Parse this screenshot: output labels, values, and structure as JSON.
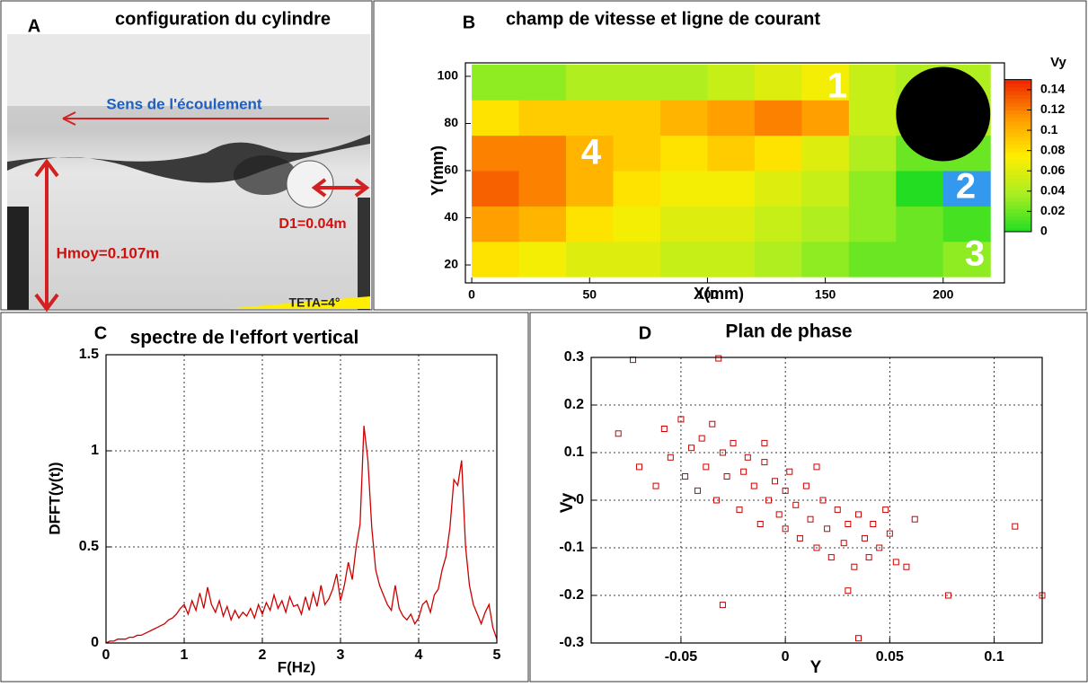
{
  "chart_data": [
    {
      "type": "image",
      "label": "A",
      "title": "configuration du cylindre",
      "annotations": [
        "Sens de l'écoulement",
        "D1=0.04m",
        "Hmoy=0.107m",
        "TETA=4°"
      ]
    },
    {
      "type": "heatmap",
      "label": "B",
      "title": "champ de vitesse et ligne de courant",
      "xlabel": "X(mm)",
      "ylabel": "Y(mm)",
      "xlim": [
        -2.7,
        226
      ],
      "ylim": [
        12.4,
        105.7
      ],
      "xticks": [
        0,
        50,
        100,
        150,
        200
      ],
      "yticks": [
        20,
        40,
        60,
        80,
        100
      ],
      "x_edges": [
        0,
        20,
        40,
        60,
        80,
        100,
        120,
        140,
        160,
        180,
        200,
        220
      ],
      "y_edges": [
        15,
        30,
        45,
        60,
        75,
        90,
        105
      ],
      "values": [
        [
          0.08,
          0.07,
          0.06,
          0.06,
          0.05,
          0.05,
          0.04,
          0.03,
          0.02,
          0.02,
          0.03
        ],
        [
          0.11,
          0.1,
          0.08,
          0.07,
          0.06,
          0.06,
          0.05,
          0.04,
          0.03,
          0.02,
          0.01
        ],
        [
          0.13,
          0.12,
          0.1,
          0.08,
          0.07,
          0.07,
          0.06,
          0.05,
          0.03,
          0,
          -0.01
        ],
        [
          0.12,
          0.12,
          0.1,
          0.09,
          0.08,
          0.09,
          0.08,
          0.06,
          0.04,
          0.02,
          0.02
        ],
        [
          0.08,
          0.09,
          0.09,
          0.09,
          0.1,
          0.11,
          0.12,
          0.11,
          0.05,
          0.04,
          0.04
        ],
        [
          0.03,
          0.03,
          0.04,
          0.04,
          0.04,
          0.05,
          0.06,
          0.07,
          0.05,
          0.04,
          0.04
        ]
      ],
      "cylinder": {
        "x": 200,
        "y": 84,
        "r": 20
      },
      "colorbar_label": "Vy",
      "clim": [
        0,
        0.15
      ],
      "cticks": [
        0,
        0.02,
        0.04,
        0.06,
        0.08,
        0.1,
        0.12,
        0.14
      ],
      "colormap": [
        "#22dd22",
        "#aaee22",
        "#ffee00",
        "#ff9900",
        "#ee2200"
      ],
      "under_color": "#3399ee",
      "annotations": [
        "1",
        "2",
        "3",
        "4"
      ]
    },
    {
      "type": "line",
      "label": "C",
      "title": "spectre de l'effort vertical",
      "xlabel": "F(Hz)",
      "ylabel": "DFFT(y(t))",
      "color": "#cc0000",
      "grid": true,
      "xlim": [
        0,
        5
      ],
      "ylim": [
        0,
        1.5
      ],
      "xticks": [
        0,
        1,
        2,
        3,
        4,
        5
      ],
      "yticks": [
        0,
        0.5,
        1,
        1.5
      ],
      "x": [
        0,
        0.05,
        0.1,
        0.15,
        0.2,
        0.25,
        0.3,
        0.35,
        0.4,
        0.45,
        0.5,
        0.55,
        0.6,
        0.65,
        0.7,
        0.75,
        0.8,
        0.85,
        0.9,
        0.95,
        1,
        1.05,
        1.1,
        1.15,
        1.2,
        1.25,
        1.3,
        1.35,
        1.4,
        1.45,
        1.5,
        1.55,
        1.6,
        1.65,
        1.7,
        1.75,
        1.8,
        1.85,
        1.9,
        1.95,
        2,
        2.05,
        2.1,
        2.15,
        2.2,
        2.25,
        2.3,
        2.35,
        2.4,
        2.45,
        2.5,
        2.55,
        2.6,
        2.65,
        2.7,
        2.75,
        2.8,
        2.85,
        2.9,
        2.95,
        3,
        3.05,
        3.1,
        3.15,
        3.2,
        3.25,
        3.3,
        3.35,
        3.4,
        3.45,
        3.5,
        3.55,
        3.6,
        3.65,
        3.7,
        3.75,
        3.8,
        3.85,
        3.9,
        3.95,
        4,
        4.05,
        4.1,
        4.15,
        4.2,
        4.25,
        4.3,
        4.35,
        4.4,
        4.45,
        4.5,
        4.55,
        4.6,
        4.65,
        4.7,
        4.75,
        4.8,
        4.85,
        4.9,
        4.95,
        5
      ],
      "values": [
        0,
        0.01,
        0.01,
        0.02,
        0.02,
        0.02,
        0.03,
        0.03,
        0.04,
        0.04,
        0.05,
        0.06,
        0.07,
        0.08,
        0.09,
        0.1,
        0.12,
        0.13,
        0.15,
        0.18,
        0.2,
        0.15,
        0.22,
        0.17,
        0.26,
        0.18,
        0.29,
        0.2,
        0.16,
        0.22,
        0.14,
        0.19,
        0.12,
        0.17,
        0.13,
        0.16,
        0.14,
        0.18,
        0.13,
        0.2,
        0.15,
        0.21,
        0.17,
        0.25,
        0.18,
        0.22,
        0.16,
        0.24,
        0.19,
        0.2,
        0.15,
        0.24,
        0.17,
        0.26,
        0.19,
        0.3,
        0.2,
        0.23,
        0.28,
        0.36,
        0.22,
        0.3,
        0.42,
        0.33,
        0.5,
        0.62,
        1.13,
        0.95,
        0.6,
        0.38,
        0.3,
        0.25,
        0.2,
        0.17,
        0.3,
        0.18,
        0.14,
        0.12,
        0.15,
        0.1,
        0.13,
        0.2,
        0.22,
        0.16,
        0.25,
        0.28,
        0.38,
        0.45,
        0.6,
        0.85,
        0.82,
        0.95,
        0.5,
        0.3,
        0.2,
        0.15,
        0.1,
        0.16,
        0.2,
        0.08,
        0.02
      ]
    },
    {
      "type": "scatter",
      "label": "D",
      "title": "Plan de phase",
      "xlabel": "Y",
      "ylabel": "Vy",
      "color": "#cc0000",
      "grid": true,
      "xlim": [
        -0.093,
        0.123
      ],
      "ylim": [
        -0.3,
        0.3
      ],
      "xticks": [
        -0.05,
        0,
        0.05,
        0.1
      ],
      "yticks": [
        -0.3,
        -0.2,
        -0.1,
        0,
        0.1,
        0.2,
        0.3
      ],
      "x": [
        -0.073,
        -0.032,
        -0.08,
        -0.07,
        -0.062,
        -0.058,
        -0.055,
        -0.05,
        -0.048,
        -0.045,
        -0.042,
        -0.04,
        -0.038,
        -0.035,
        -0.033,
        -0.03,
        -0.028,
        -0.025,
        -0.022,
        -0.02,
        -0.018,
        -0.015,
        -0.012,
        -0.01,
        -0.008,
        -0.005,
        -0.003,
        0,
        0,
        0.002,
        0.005,
        0.007,
        0.01,
        0.012,
        0.015,
        0.018,
        0.02,
        0.022,
        0.025,
        0.028,
        0.03,
        0.033,
        0.035,
        0.038,
        0.04,
        0.042,
        0.045,
        0.048,
        0.05,
        0.053,
        0.058,
        0.062,
        0.078,
        0.11,
        0.123,
        -0.03,
        0.035,
        0.03,
        -0.01,
        0.015
      ],
      "values": [
        0.295,
        0.298,
        0.14,
        0.07,
        0.03,
        0.15,
        0.09,
        0.17,
        0.05,
        0.11,
        0.02,
        0.13,
        0.07,
        0.16,
        0,
        0.1,
        0.05,
        0.12,
        -0.02,
        0.06,
        0.09,
        0.03,
        -0.05,
        0.08,
        0,
        0.04,
        -0.03,
        0.02,
        -0.06,
        0.06,
        -0.01,
        -0.08,
        0.03,
        -0.04,
        -0.1,
        0,
        -0.06,
        -0.12,
        -0.02,
        -0.09,
        -0.05,
        -0.14,
        -0.03,
        -0.08,
        -0.12,
        -0.05,
        -0.1,
        -0.02,
        -0.07,
        -0.13,
        -0.14,
        -0.04,
        -0.2,
        -0.055,
        -0.2,
        -0.22,
        -0.29,
        -0.19,
        0.12,
        0.07
      ]
    }
  ]
}
